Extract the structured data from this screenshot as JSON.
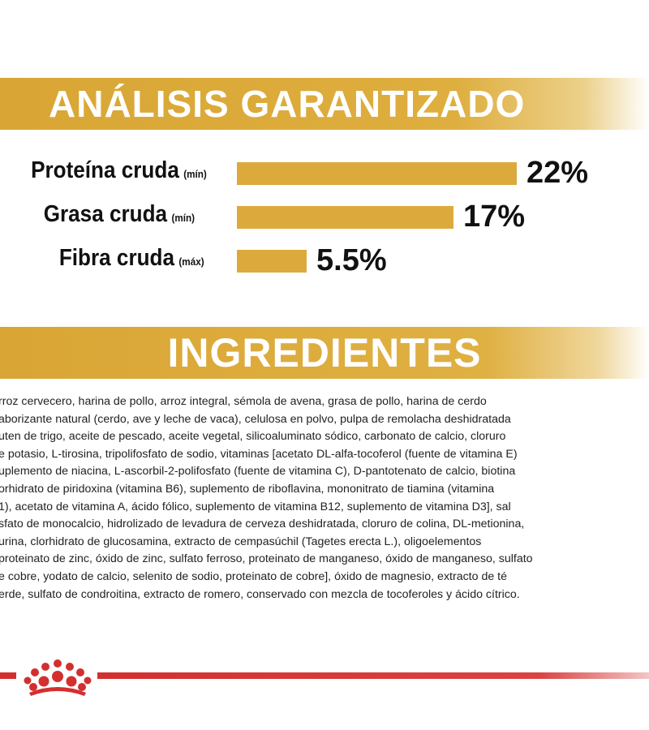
{
  "headers": {
    "analysis": "ANÁLISIS GARANTIZADO",
    "ingredients": "INGREDIENTES"
  },
  "analysis": [
    {
      "name": "Proteína cruda",
      "qualifier": "(mín)",
      "percent": "22%",
      "value": 22
    },
    {
      "name": "Grasa cruda",
      "qualifier": "(mín)",
      "percent": "17%",
      "value": 17
    },
    {
      "name": "Fibra cruda",
      "qualifier": "(máx)",
      "percent": "5.5%",
      "value": 5.5
    }
  ],
  "ingredients_lines": [
    "rroz cervecero, harina de pollo, arroz integral, sémola de avena, grasa de pollo, harina de cerdo",
    "aborizante natural (cerdo, ave y leche de vaca), celulosa en polvo, pulpa de remolacha deshidratada",
    "uten de trigo, aceite de pescado, aceite vegetal, silicoaluminato sódico, carbonato de calcio, cloruro",
    "e potasio, L-tirosina, tripolifosfato de sodio, vitaminas [acetato DL-alfa-tocoferol (fuente de vitamina E)",
    "uplemento de niacina, L-ascorbil-2-polifosfato (fuente de vitamina C), D-pantotenato de calcio, biotina",
    "orhidrato de piridoxina (vitamina B6), suplemento de riboflavina, mononitrato de tiamina (vitamina",
    "1), acetato de vitamina A, ácido fólico, suplemento de vitamina B12, suplemento de vitamina D3], sal",
    "sfato de monocalcio, hidrolizado de levadura de cerveza deshidratada, cloruro de colina, DL-metionina,",
    "urina, clorhidrato de glucosamina, extracto de cempasúchil (Tagetes erecta L.), oligoelementos",
    "proteinato de zinc, óxido de zinc, sulfato ferroso, proteinato de manganeso, óxido de manganeso, sulfato",
    "e cobre, yodato de calcio, selenito de sodio, proteinato de cobre], óxido de magnesio, extracto de té",
    "erde, sulfato de condroitina, extracto de romero, conservado con mezcla de tocoferoles y ácido cítrico."
  ],
  "colors": {
    "gold": "#dcaa3c",
    "brand_red": "#d32f2f"
  },
  "logo": "royal-canin-crown"
}
